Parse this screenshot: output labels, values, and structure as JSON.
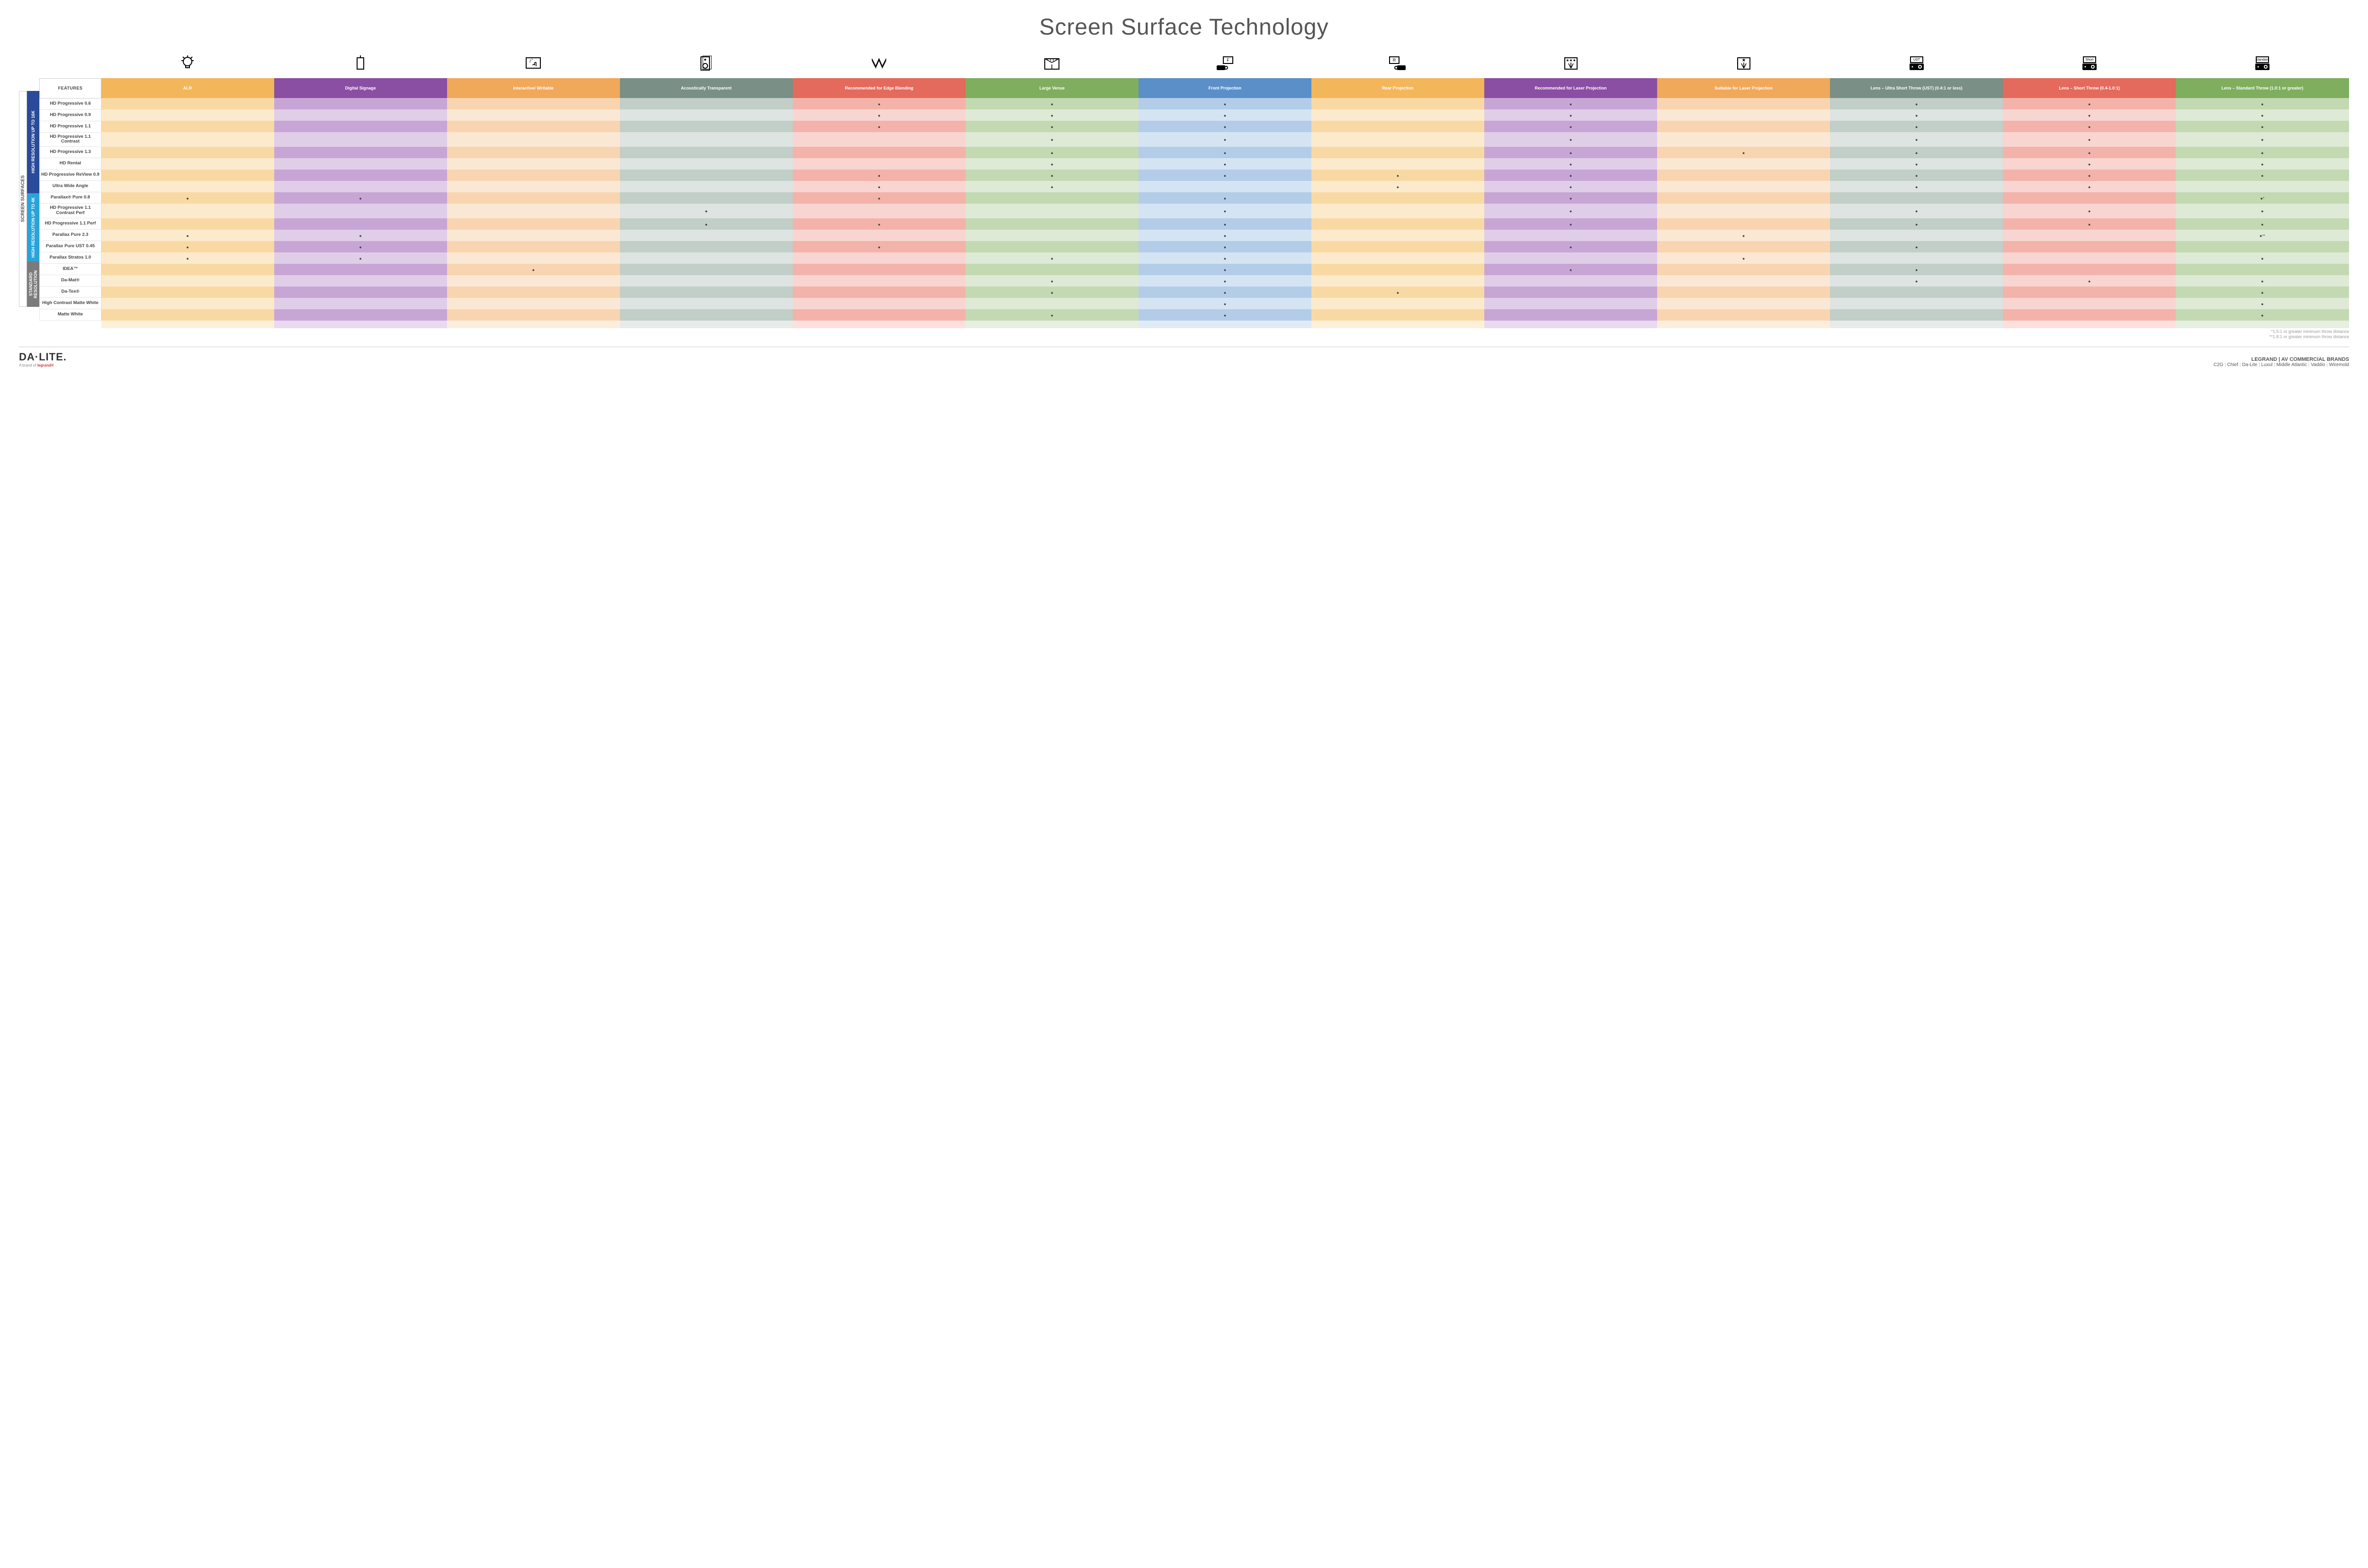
{
  "title": "Screen Surface Technology",
  "sideLabel": "SCREEN SURFACES",
  "groups": [
    {
      "label": "HIGH RESOLUTION UP TO 16K",
      "color": "#2a4b9b",
      "rowspan": 9
    },
    {
      "label": "HIGH RESOLUTION UP TO 4K",
      "color": "#29a3d9",
      "rowspan": 6
    },
    {
      "label": "STANDARD RESOLUTION",
      "color": "#7b7b7b",
      "rowspan": 4
    }
  ],
  "columns": [
    {
      "key": "alr",
      "label": "ALR",
      "base": "#f3b65a",
      "alt": "#f9d9a3",
      "icon": "bulb"
    },
    {
      "key": "sign",
      "label": "Digital Signage",
      "base": "#8a4ea3",
      "alt": "#c7a6d6",
      "icon": "signage"
    },
    {
      "key": "write",
      "label": "Interactive/ Writable",
      "base": "#f0a85b",
      "alt": "#f8d5b0",
      "icon": "touch"
    },
    {
      "key": "acou",
      "label": "Acoustically Transparent",
      "base": "#7a8f85",
      "alt": "#c2cec8",
      "icon": "speaker"
    },
    {
      "key": "edge",
      "label": "Recommended for Edge Blending",
      "base": "#e36a5c",
      "alt": "#f3b3aa",
      "icon": "blend"
    },
    {
      "key": "large",
      "label": "Large Venue",
      "base": "#7fae5f",
      "alt": "#c3d9b2",
      "icon": "venue"
    },
    {
      "key": "front",
      "label": "Front Projection",
      "base": "#5a8fc8",
      "alt": "#b3cde8",
      "icon": "front"
    },
    {
      "key": "rear",
      "label": "Rear Projection",
      "base": "#f3b65a",
      "alt": "#f9d9a3",
      "icon": "rear"
    },
    {
      "key": "reclas",
      "label": "Recommended for Laser Projection",
      "base": "#8a4ea3",
      "alt": "#c7a6d6",
      "icon": "laser3"
    },
    {
      "key": "suitlas",
      "label": "Suitable for Laser Projection",
      "base": "#f0a85b",
      "alt": "#f8d5b0",
      "icon": "laser1"
    },
    {
      "key": "ust",
      "label": "Lens – Ultra Short Throw (UST) (0.4:1 or less)",
      "base": "#7a8f85",
      "alt": "#c2cec8",
      "icon": "proj-ust"
    },
    {
      "key": "short",
      "label": "Lens – Short Throw (0.4-1.0:1)",
      "base": "#e36a5c",
      "alt": "#f3b3aa",
      "icon": "proj-short"
    },
    {
      "key": "std",
      "label": "Lens – Standard Throw (1.0:1 or greater)",
      "base": "#7fae5f",
      "alt": "#c3d9b2",
      "icon": "proj-std"
    }
  ],
  "featuresHeading": "FEATURES",
  "rows": [
    {
      "label": "HD Progressive 0.6",
      "dots": {
        "edge": "",
        "large": "",
        "front": "",
        "reclas": "",
        "ust": "",
        "short": "",
        "std": ""
      }
    },
    {
      "label": "HD Progressive 0.9",
      "dots": {
        "edge": "",
        "large": "",
        "front": "",
        "reclas": "",
        "ust": "",
        "short": "",
        "std": ""
      }
    },
    {
      "label": "HD Progressive 1.1",
      "dots": {
        "edge": "",
        "large": "",
        "front": "",
        "reclas": "",
        "ust": "",
        "short": "",
        "std": ""
      }
    },
    {
      "label": "HD Progressive 1.1 Contrast",
      "dots": {
        "large": "",
        "front": "",
        "reclas": "",
        "ust": "",
        "short": "",
        "std": ""
      }
    },
    {
      "label": "HD Progressive 1.3",
      "dots": {
        "large": "",
        "front": "",
        "reclas": "",
        "suitlas": "",
        "ust": "",
        "short": "",
        "std": ""
      }
    },
    {
      "label": "HD Rental",
      "dots": {
        "large": "",
        "front": "",
        "reclas": "",
        "ust": "",
        "short": "",
        "std": ""
      }
    },
    {
      "label": "HD Progressive ReView 0.9",
      "dots": {
        "edge": "",
        "large": "",
        "front": "",
        "rear": "",
        "reclas": "",
        "ust": "",
        "short": "",
        "std": ""
      }
    },
    {
      "label": "Ultra Wide Angle",
      "dots": {
        "edge": "",
        "large": "",
        "rear": "",
        "reclas": "",
        "ust": "",
        "short": ""
      }
    },
    {
      "label": "Parallax® Pure 0.8",
      "dots": {
        "alr": "",
        "sign": "",
        "edge": "",
        "front": "",
        "reclas": "",
        "std": "*"
      }
    },
    {
      "label": "HD Progressive 1.1 Contrast Perf",
      "dots": {
        "acou": "",
        "front": "",
        "reclas": "",
        "ust": "",
        "short": "",
        "std": ""
      }
    },
    {
      "label": "HD Progressive 1.1 Perf",
      "dots": {
        "acou": "",
        "edge": "",
        "front": "",
        "reclas": "",
        "ust": "",
        "short": "",
        "std": ""
      }
    },
    {
      "label": "Parallax Pure 2.3",
      "dots": {
        "alr": "",
        "sign": "",
        "front": "",
        "suitlas": "",
        "std": "**"
      }
    },
    {
      "label": "Parallax Pure UST 0.45",
      "dots": {
        "alr": "",
        "sign": "",
        "edge": "",
        "front": "",
        "reclas": "",
        "ust": ""
      }
    },
    {
      "label": "Parallax Stratos 1.0",
      "dots": {
        "alr": "",
        "sign": "",
        "large": "",
        "front": "",
        "suitlas": "",
        "std": ""
      }
    },
    {
      "label": "IDEA™",
      "dots": {
        "write": "",
        "front": "",
        "reclas": "",
        "ust": ""
      }
    },
    {
      "label": "Da-Mat®",
      "dots": {
        "large": "",
        "front": "",
        "ust": "",
        "short": "",
        "std": ""
      }
    },
    {
      "label": "Da-Tex®",
      "dots": {
        "large": "",
        "front": "",
        "rear": "",
        "std": ""
      }
    },
    {
      "label": "High Contrast Matte White",
      "dots": {
        "front": "",
        "std": ""
      }
    },
    {
      "label": "Matte White",
      "dots": {
        "large": "",
        "front": "",
        "std": ""
      }
    }
  ],
  "footnotes": [
    "*1.5:1 or greater minimum throw distance",
    "**1.8:1 or greater minimum throw distance"
  ],
  "footer": {
    "logo": "DA·LITE.",
    "byline_prefix": "A brand of ",
    "byline_brand": "legrand®",
    "brands_heading": "LEGRAND | AV COMMERCIAL BRANDS",
    "brands": [
      "C2G",
      "Chief",
      "Da-Lite",
      "Luxul",
      "Middle Atlantic",
      "Vaddio",
      "Wiremold"
    ]
  }
}
